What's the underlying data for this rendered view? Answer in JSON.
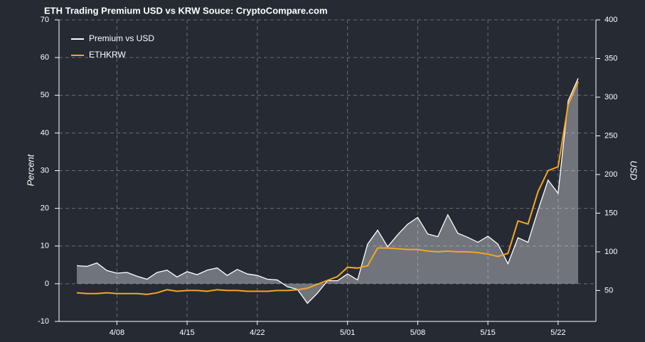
{
  "chart_data": {
    "type": "line",
    "title": "ETH Trading Premium USD vs KRW Souce: CryptoCompare.com",
    "y_label": "Percent",
    "y2_label": "USD",
    "categories": [
      null,
      null,
      null,
      null,
      "4/08",
      null,
      null,
      null,
      null,
      null,
      null,
      "4/15",
      null,
      null,
      null,
      null,
      null,
      null,
      "4/22",
      null,
      null,
      null,
      null,
      null,
      null,
      null,
      null,
      "5/01",
      null,
      null,
      null,
      null,
      null,
      null,
      "5/08",
      null,
      null,
      null,
      null,
      null,
      null,
      "5/15",
      null,
      null,
      null,
      null,
      null,
      null,
      "5/22",
      null,
      null
    ],
    "series": [
      {
        "name": "Premium vs USD",
        "color": "#ffffff",
        "fill": true,
        "values": [
          4.8,
          4.6,
          5.5,
          3.5,
          2.8,
          3.0,
          2.0,
          1.2,
          3.0,
          3.6,
          1.8,
          3.2,
          2.4,
          3.6,
          4.2,
          2.2,
          3.8,
          2.6,
          2.2,
          1.2,
          1.0,
          -0.8,
          -1.5,
          -5.2,
          -2.5,
          0.8,
          0.8,
          2.6,
          1.0,
          10.5,
          14.2,
          9.8,
          13.0,
          15.8,
          17.6,
          13.2,
          12.5,
          18.3,
          13.4,
          12.3,
          11.0,
          12.6,
          10.5,
          5.3,
          12.2,
          11.0,
          19.5,
          27.5,
          24.0,
          48.5,
          54.5
        ]
      },
      {
        "name": "ETHKRW",
        "color": "#f5a623",
        "axis": "y2",
        "values": [
          47,
          46,
          46,
          47,
          46,
          46,
          46,
          45,
          47,
          51,
          49,
          50,
          50,
          49,
          51,
          50,
          50,
          49,
          49,
          49,
          50,
          50,
          51,
          53,
          58,
          63,
          68,
          80,
          79,
          82,
          105,
          105,
          104,
          103,
          103,
          101,
          100,
          101,
          100,
          100,
          99,
          97,
          94,
          98,
          140,
          136,
          178,
          205,
          210,
          290,
          320
        ]
      }
    ],
    "ylim": [
      -10,
      70
    ],
    "yticks": [
      -10,
      0,
      10,
      20,
      30,
      40,
      50,
      60,
      70
    ],
    "y2lim": [
      10,
      400
    ],
    "y2ticks": [
      50,
      100,
      150,
      200,
      250,
      300,
      350,
      400
    ],
    "grid": true,
    "legend": "upper left"
  }
}
